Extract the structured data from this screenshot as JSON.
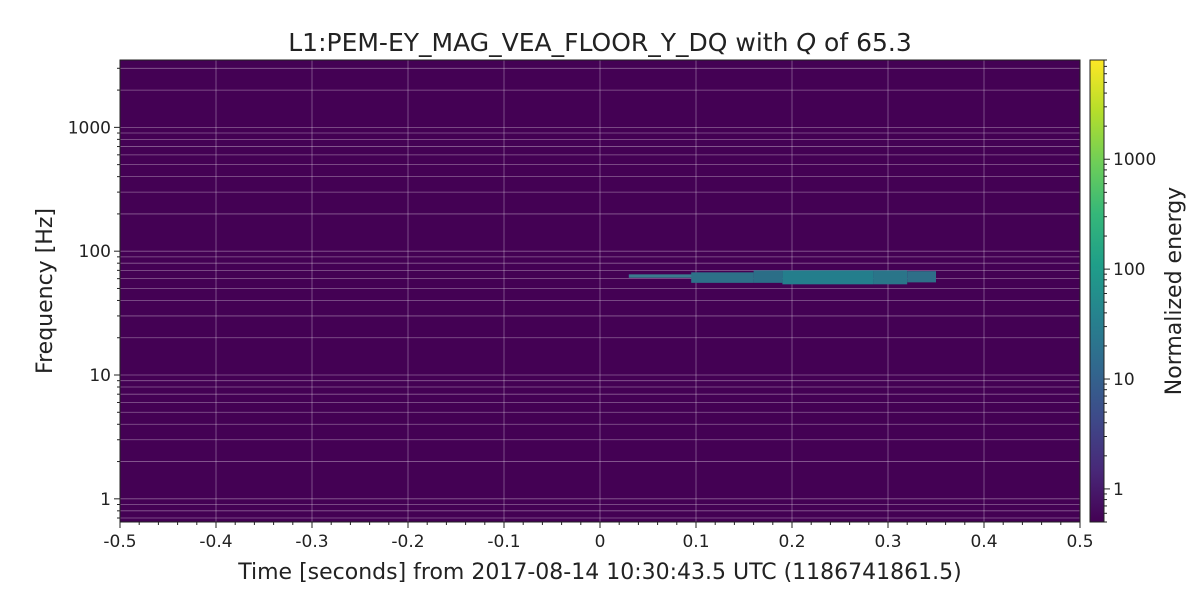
{
  "chart_data": {
    "type": "heatmap",
    "title_main": "L1:PEM-EY_MAG_VEA_FLOOR_Y_DQ with ",
    "title_q_symbol": "Q",
    "title_tail": " of 65.3",
    "xlabel": "Time [seconds] from 2017-08-14 10:30:43.5 UTC (1186741861.5)",
    "ylabel": "Frequency [Hz]",
    "colorbar_label": "Normalized energy",
    "x_ticks": [
      "-0.5",
      "-0.4",
      "-0.3",
      "-0.2",
      "-0.1",
      "0",
      "0.1",
      "0.2",
      "0.3",
      "0.4",
      "0.5"
    ],
    "x_tick_values": [
      -0.5,
      -0.4,
      -0.3,
      -0.2,
      -0.1,
      0,
      0.1,
      0.2,
      0.3,
      0.4,
      0.5
    ],
    "xlim": [
      -0.5,
      0.5
    ],
    "y_ticks": [
      "1",
      "10",
      "100",
      "1000"
    ],
    "y_tick_values": [
      1,
      10,
      100,
      1000
    ],
    "ylim": [
      0.65,
      3500
    ],
    "y_scale": "log",
    "colorbar_ticks": [
      "1",
      "10",
      "100",
      "1000"
    ],
    "colorbar_tick_values": [
      1,
      10,
      100,
      1000
    ],
    "colorbar_range": [
      0.5,
      8000
    ],
    "colorbar_scale": "log",
    "colormap": "viridis",
    "background_color": "#440154",
    "grid": true,
    "tiles": [
      {
        "t0": 0.03,
        "t1": 0.1,
        "f0": 61.0,
        "f1": 65.0,
        "energy": 60,
        "color": "#3a7b8e"
      },
      {
        "t0": 0.095,
        "t1": 0.16,
        "f0": 55.5,
        "f1": 67.5,
        "energy": 80,
        "color": "#2d7088"
      },
      {
        "t0": 0.16,
        "t1": 0.19,
        "f0": 55.5,
        "f1": 70.0,
        "energy": 90,
        "color": "#2b6e87"
      },
      {
        "t0": 0.19,
        "t1": 0.285,
        "f0": 54.0,
        "f1": 70.0,
        "energy": 150,
        "color": "#247e8c"
      },
      {
        "t0": 0.285,
        "t1": 0.32,
        "f0": 54.0,
        "f1": 70.0,
        "energy": 110,
        "color": "#2a7589"
      },
      {
        "t0": 0.32,
        "t1": 0.35,
        "f0": 56.0,
        "f1": 69.0,
        "energy": 80,
        "color": "#2e6f88"
      }
    ]
  }
}
